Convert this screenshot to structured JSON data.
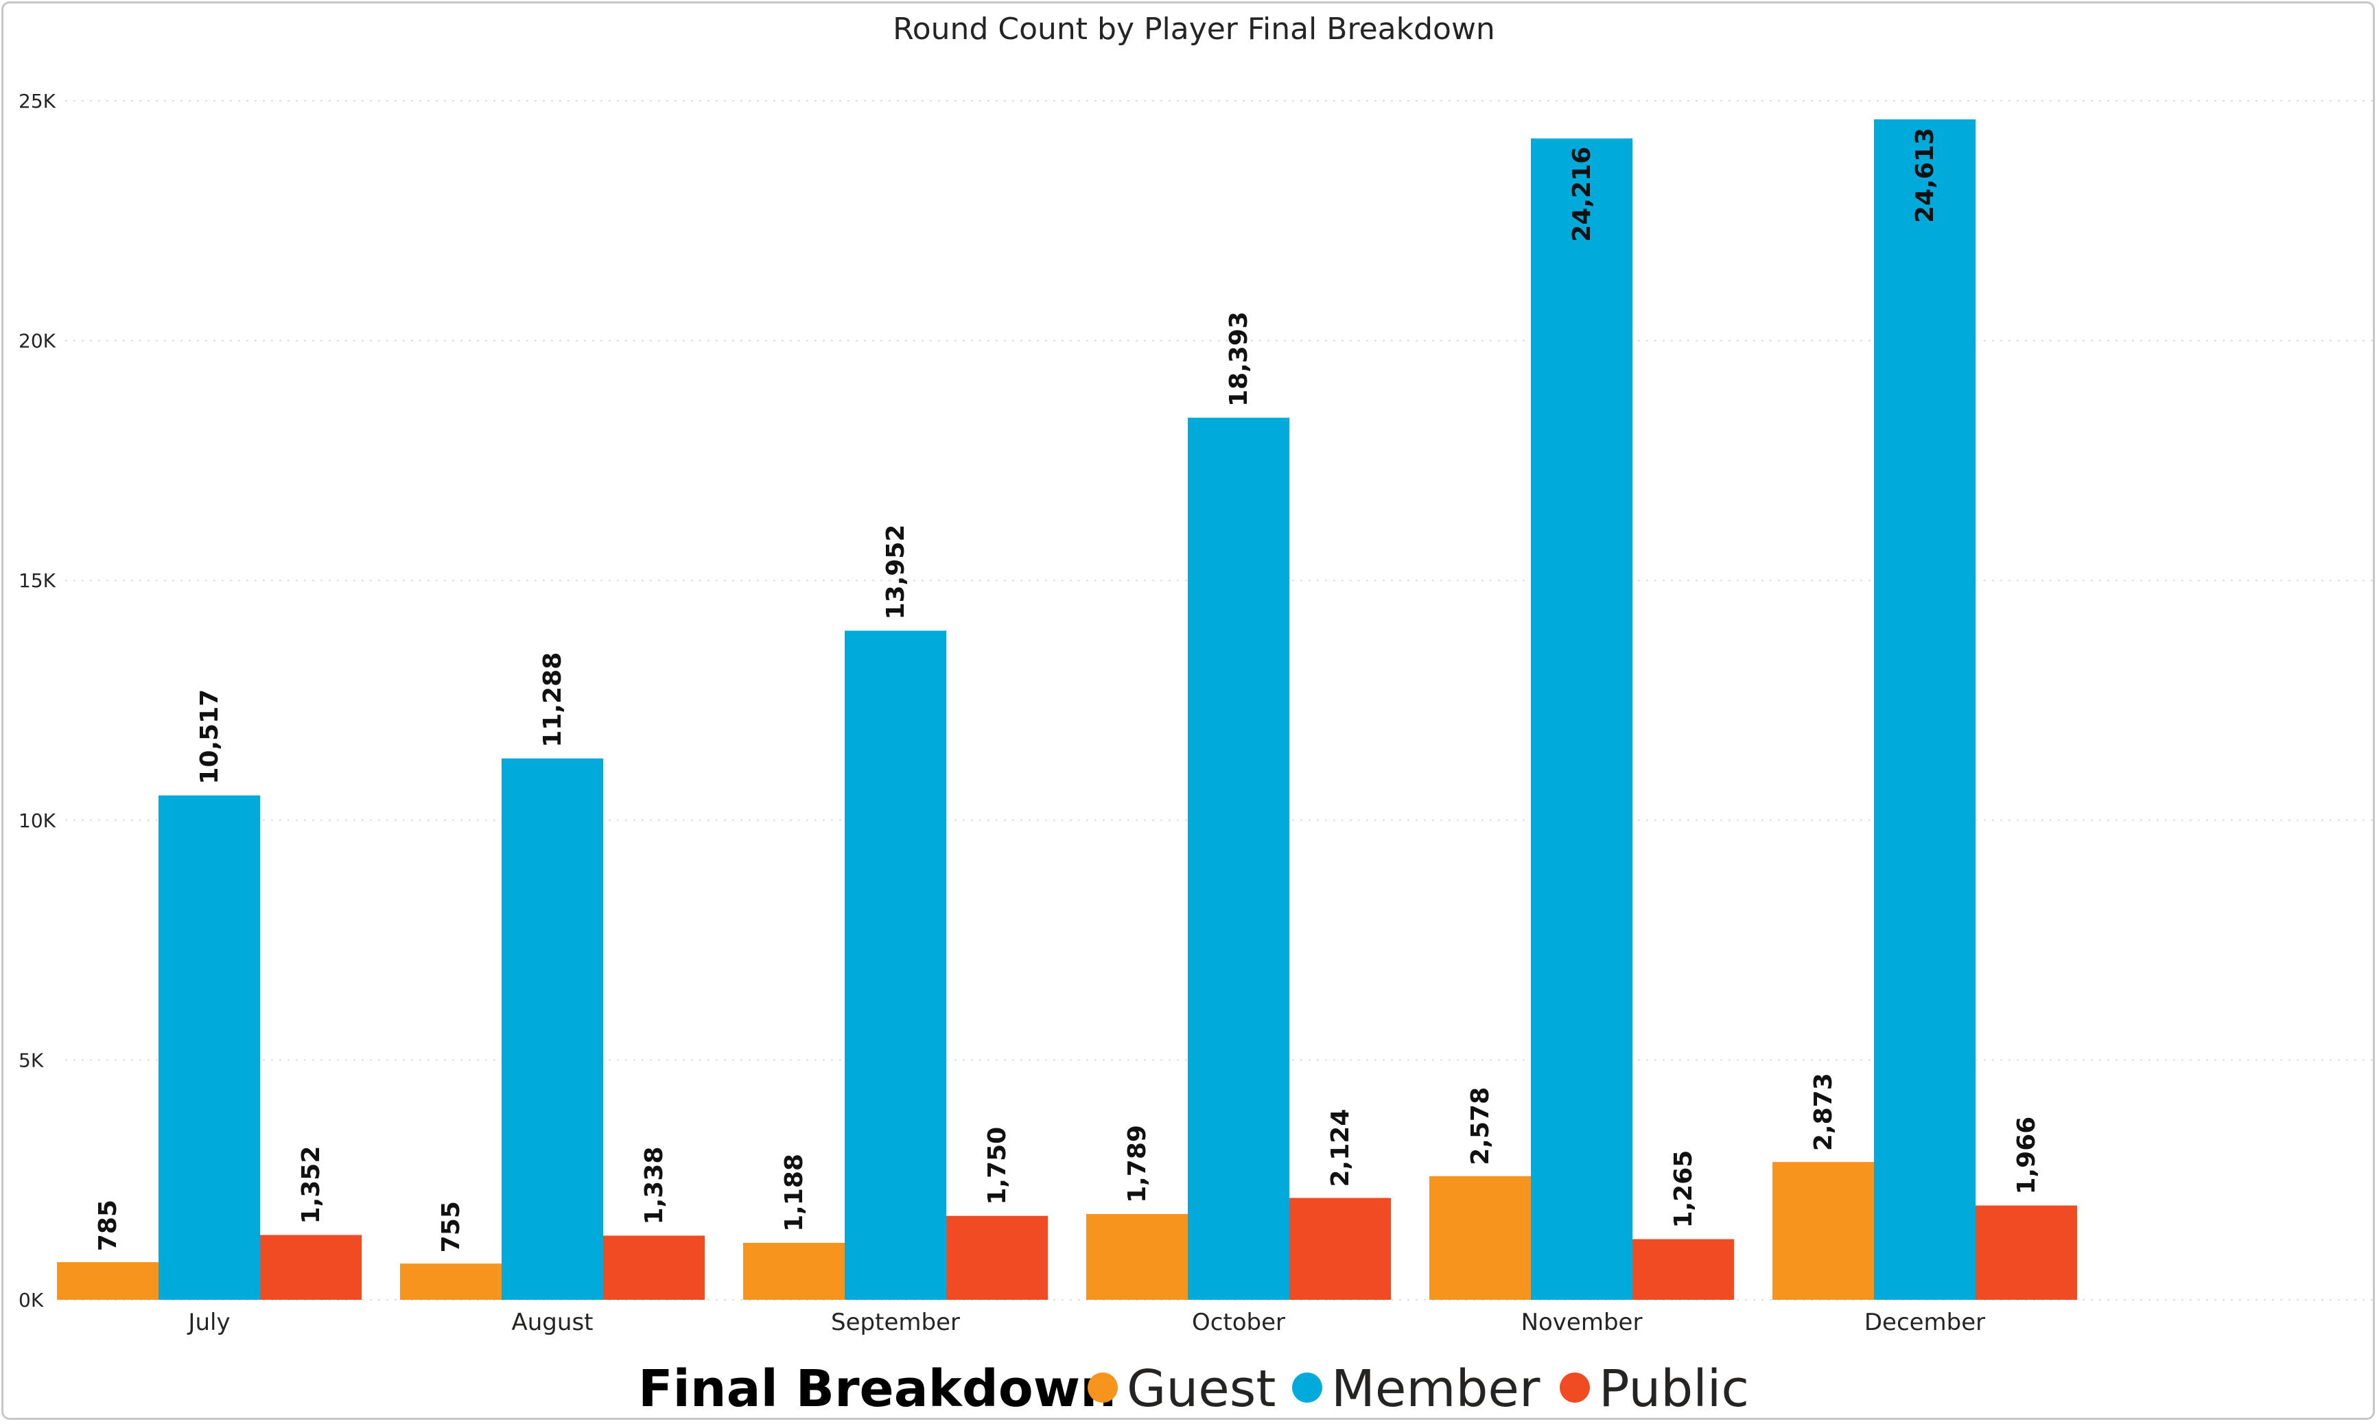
{
  "chart_data": {
    "type": "bar",
    "title": "Round Count by Player Final Breakdown",
    "categories": [
      "July",
      "August",
      "September",
      "October",
      "November",
      "December"
    ],
    "series": [
      {
        "name": "Guest",
        "color": "#F7941D",
        "values": [
          785,
          755,
          1188,
          1789,
          2578,
          2873
        ],
        "labels": [
          "785",
          "755",
          "1,188",
          "1,789",
          "2,578",
          "2,873"
        ]
      },
      {
        "name": "Member",
        "color": "#00AADB",
        "values": [
          10517,
          11288,
          13952,
          18393,
          24216,
          24613
        ],
        "labels": [
          "10,517",
          "11,288",
          "13,952",
          "18,393",
          "24,216",
          "24,613"
        ]
      },
      {
        "name": "Public",
        "color": "#F04B23",
        "values": [
          1352,
          1338,
          1750,
          2124,
          1265,
          1966
        ],
        "labels": [
          "1,352",
          "1,338",
          "1,750",
          "2,124",
          "1,265",
          "1,966"
        ]
      }
    ],
    "ylim": [
      0,
      25000
    ],
    "yticks": [
      0,
      5000,
      10000,
      15000,
      20000,
      25000
    ],
    "ytick_labels": [
      "0K",
      "5K",
      "10K",
      "15K",
      "20K",
      "25K"
    ],
    "grid": true,
    "legend": {
      "title": "Final Breakdown",
      "position": "bottom"
    },
    "xlabel": "",
    "ylabel": ""
  }
}
